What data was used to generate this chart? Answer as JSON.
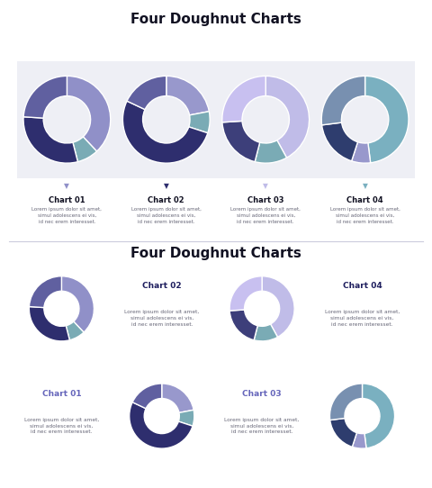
{
  "title": "Four Doughnut Charts",
  "body_text": "Lorem ipsum dolor sit amet,\nsimul adolescens ei vis,\nid nec erem interesset.",
  "chart_labels": [
    "Chart 01",
    "Chart 02",
    "Chart 03",
    "Chart 04"
  ],
  "slide1": {
    "charts": [
      {
        "segments": [
          0.38,
          0.08,
          0.3,
          0.24
        ],
        "colors": [
          "#9090c8",
          "#7aabb5",
          "#2e2e6e",
          "#6060a0"
        ]
      },
      {
        "segments": [
          0.22,
          0.08,
          0.52,
          0.18
        ],
        "colors": [
          "#9898cc",
          "#7aabb5",
          "#2e2e6e",
          "#6060a0"
        ]
      },
      {
        "segments": [
          0.42,
          0.12,
          0.2,
          0.26
        ],
        "colors": [
          "#c0bce8",
          "#7aabb5",
          "#3d3f7a",
          "#c8c0f0"
        ]
      },
      {
        "segments": [
          0.48,
          0.07,
          0.18,
          0.27
        ],
        "colors": [
          "#7ab0c0",
          "#9898cc",
          "#2e3d6e",
          "#7890b0"
        ]
      }
    ],
    "arrow_colors": [
      "#9090c8",
      "#2e2e6e",
      "#c0bce8",
      "#7ab0c0"
    ],
    "label_colors": [
      "#111122",
      "#111122",
      "#111122",
      "#111122"
    ]
  },
  "slide2": {
    "charts": [
      {
        "segments": [
          0.38,
          0.08,
          0.3,
          0.24
        ],
        "colors": [
          "#9090c8",
          "#7aabb5",
          "#2e2e6e",
          "#6060a0"
        ]
      },
      {
        "segments": [
          0.22,
          0.08,
          0.52,
          0.18
        ],
        "colors": [
          "#9898cc",
          "#7aabb5",
          "#2e2e6e",
          "#6060a0"
        ]
      },
      {
        "segments": [
          0.42,
          0.12,
          0.2,
          0.26
        ],
        "colors": [
          "#c0bce8",
          "#7aabb5",
          "#3d3f7a",
          "#c8c0f0"
        ]
      },
      {
        "segments": [
          0.48,
          0.07,
          0.18,
          0.27
        ],
        "colors": [
          "#7ab0c0",
          "#9898cc",
          "#2e3d6e",
          "#7890b0"
        ]
      }
    ],
    "label_colors": [
      "#6666bb",
      "#1e1e5e",
      "#6666bb",
      "#1e1e5e"
    ],
    "cell_bg_donut": "#dde0f2",
    "cell_bg_text": "#ffffff"
  },
  "background_color": "#ffffff",
  "panel_bg": "#eeeff5",
  "text_color": "#666677",
  "title_color": "#111122",
  "separator_color": "#ccccdd"
}
